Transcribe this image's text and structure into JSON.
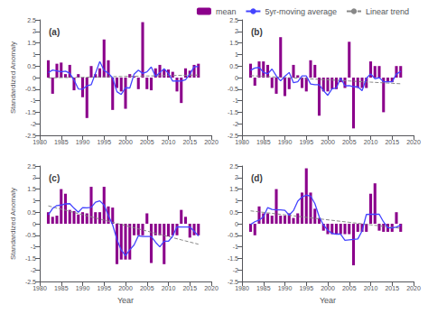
{
  "chart_data": [
    {
      "type": "bar",
      "title": "(a)",
      "x": [
        1982,
        1983,
        1984,
        1985,
        1986,
        1987,
        1988,
        1989,
        1990,
        1991,
        1992,
        1993,
        1994,
        1995,
        1996,
        1997,
        1998,
        1999,
        2000,
        2001,
        2002,
        2003,
        2004,
        2005,
        2006,
        2007,
        2008,
        2009,
        2010,
        2011,
        2012,
        2013,
        2014,
        2015,
        2016,
        2017
      ],
      "series": [
        {
          "name": "mean",
          "type": "bar",
          "color": "#8B008B",
          "values": [
            0.75,
            -0.7,
            0.6,
            0.65,
            0.15,
            0.55,
            -0.55,
            0.15,
            -0.85,
            -1.75,
            0.5,
            0.15,
            0.4,
            1.65,
            0.75,
            -1.4,
            -0.45,
            -0.6,
            -1.35,
            0.15,
            0.05,
            -0.5,
            2.4,
            -0.5,
            -0.55,
            0.4,
            0.55,
            0.35,
            0.35,
            0.25,
            -0.6,
            -1.1,
            0.4,
            0.3,
            0.55,
            0.6
          ]
        },
        {
          "name": "5yr-moving average",
          "type": "line",
          "color": "#4444FF",
          "line_style": "solid",
          "values": [
            0.2167,
            0.325,
            0.29,
            0.25,
            0.28,
            0.19,
            -0.11,
            -0.49,
            -0.5,
            -0.36,
            -0.31,
            0.19,
            0.69,
            0.31,
            0.19,
            -0.01,
            -0.61,
            -0.73,
            -0.44,
            -0.45,
            0.15,
            0.32,
            0.18,
            0.25,
            0.46,
            0.05,
            0.22,
            0.38,
            0.18,
            -0.15,
            -0.14,
            -0.15,
            -0.09,
            0.15,
            0.4625,
            0.4833
          ]
        },
        {
          "name": "Linear trend",
          "type": "line",
          "color": "#888888",
          "line_style": "dashed",
          "values": [
            -0.0128,
            -0.0093,
            -0.0057,
            -0.0022,
            0.0013,
            0.0048,
            0.0083,
            0.0118,
            0.0153,
            0.0188,
            0.0223,
            0.0258,
            0.0293,
            0.0328,
            0.0363,
            0.0398,
            0.0434,
            0.0469,
            0.0504,
            0.0539,
            0.0574,
            0.0609,
            0.0644,
            0.0679,
            0.0714,
            0.0749,
            0.0784,
            0.0819,
            0.0854,
            0.0889,
            0.0924,
            0.096,
            0.0995,
            0.103,
            0.1065,
            0.11
          ]
        }
      ],
      "ylabel": "Standardized Anomaly",
      "xlim": [
        1980,
        2020
      ],
      "xticks": [
        1980,
        1985,
        1990,
        1995,
        2000,
        2005,
        2010,
        2015,
        2020
      ],
      "ylim": [
        -2.5,
        2.5
      ],
      "yticks": [
        -2.5,
        -2,
        -1.5,
        -1,
        -0.5,
        0,
        0.5,
        1,
        1.5,
        2,
        2.5
      ],
      "grid": false
    },
    {
      "type": "bar",
      "title": "(b)",
      "x": [
        1982,
        1983,
        1984,
        1985,
        1986,
        1987,
        1988,
        1989,
        1990,
        1991,
        1992,
        1993,
        1994,
        1995,
        1996,
        1997,
        1998,
        1999,
        2000,
        2001,
        2002,
        2003,
        2004,
        2005,
        2006,
        2007,
        2008,
        2009,
        2010,
        2011,
        2012,
        2013,
        2014,
        2015,
        2016,
        2017
      ],
      "series": [
        {
          "name": "mean",
          "type": "bar",
          "color": "#8B008B",
          "values": [
            0.6,
            -0.35,
            0.7,
            0.7,
            0.55,
            -0.45,
            -0.7,
            1.75,
            -0.8,
            -0.5,
            0.55,
            0.1,
            -0.45,
            -0.6,
            0.75,
            0.55,
            -1.65,
            -0.6,
            -0.6,
            -0.5,
            -0.5,
            -0.2,
            -0.45,
            1.55,
            -2.2,
            -0.45,
            -0.45,
            -0.45,
            0.7,
            0.5,
            0.5,
            -1.5,
            -0.2,
            -0.2,
            0.5,
            0.5
          ]
        },
        {
          "name": "5yr-moving average",
          "type": "line",
          "color": "#4444FF",
          "line_style": "solid",
          "values": [
            0.3167,
            0.4125,
            0.44,
            0.23,
            0.16,
            0.37,
            0.07,
            -0.14,
            0.06,
            0.22,
            -0.22,
            -0.18,
            0.07,
            0.07,
            -0.28,
            -0.31,
            -0.31,
            -0.56,
            -0.77,
            -0.48,
            -0.45,
            -0.02,
            -0.36,
            -0.35,
            -0.4,
            -0.4,
            -0.57,
            -0.03,
            0.16,
            -0.05,
            0,
            -0.18,
            -0.18,
            -0.18,
            0.15,
            0.2667
          ]
        },
        {
          "name": "Linear trend",
          "type": "line",
          "color": "#888888",
          "line_style": "dashed",
          "values": [
            0.084,
            0.074,
            0.0639,
            0.0539,
            0.0439,
            0.0338,
            0.0238,
            0.0137,
            0.0037,
            -0.0063,
            -0.0164,
            -0.0264,
            -0.0365,
            -0.0465,
            -0.0565,
            -0.0666,
            -0.0766,
            -0.0866,
            -0.0967,
            -0.1067,
            -0.1168,
            -0.1268,
            -0.1368,
            -0.1469,
            -0.1569,
            -0.167,
            -0.177,
            -0.187,
            -0.1971,
            -0.2071,
            -0.2171,
            -0.2272,
            -0.2372,
            -0.2473,
            -0.2573,
            -0.2673
          ]
        }
      ],
      "legend": "upper right",
      "xlim": [
        1980,
        2020
      ],
      "xticks": [
        1980,
        1985,
        1990,
        1995,
        2000,
        2005,
        2010,
        2015,
        2020
      ],
      "ylim": [
        -2.5,
        2.5
      ],
      "yticks": [
        -2.5,
        -2,
        -1.5,
        -1,
        -0.5,
        0,
        0.5,
        1,
        1.5,
        2,
        2.5
      ],
      "grid": false
    },
    {
      "type": "bar",
      "title": "(c)",
      "x": [
        1982,
        1983,
        1984,
        1985,
        1986,
        1987,
        1988,
        1989,
        1990,
        1991,
        1992,
        1993,
        1994,
        1995,
        1996,
        1997,
        1998,
        1999,
        2000,
        2001,
        2002,
        2003,
        2004,
        2005,
        2006,
        2007,
        2008,
        2009,
        2010,
        2011,
        2012,
        2013,
        2014,
        2015,
        2016,
        2017
      ],
      "series": [
        {
          "name": "mean",
          "type": "bar",
          "color": "#8B008B",
          "values": [
            0.5,
            0.3,
            0.35,
            1.5,
            1.3,
            0.6,
            0.55,
            0.4,
            0.5,
            0.45,
            1.6,
            0.5,
            0.5,
            1.6,
            0.75,
            0.7,
            -1.75,
            -1.55,
            -1.55,
            -1.55,
            -0.5,
            -0.5,
            -0.5,
            0.45,
            -1.7,
            -0.5,
            -0.5,
            -1.75,
            -0.55,
            -0.5,
            -0.5,
            0.6,
            0.3,
            -0.6,
            -0.5,
            -0.5
          ]
        },
        {
          "name": "5yr-moving average",
          "type": "line",
          "color": "#4444FF",
          "line_style": "solid",
          "values": [
            0.3833,
            0.6625,
            0.79,
            0.81,
            0.86,
            0.87,
            0.67,
            0.5,
            0.7,
            0.69,
            0.71,
            0.93,
            0.99,
            0.81,
            0.36,
            -0.05,
            -0.68,
            -1.14,
            -1.38,
            -1.13,
            -0.92,
            -0.52,
            -0.55,
            -0.55,
            -0.55,
            -0.8,
            -1,
            -0.76,
            -0.76,
            -0.54,
            -0.13,
            -0.14,
            -0.14,
            -0.14,
            -0.325,
            -0.5333
          ]
        },
        {
          "name": "Linear trend",
          "type": "line",
          "color": "#888888",
          "line_style": "dashed",
          "values": [
            0.7736,
            0.7261,
            0.6787,
            0.6312,
            0.5837,
            0.5363,
            0.4888,
            0.4414,
            0.3939,
            0.3465,
            0.299,
            0.2515,
            0.2041,
            0.1566,
            0.1092,
            0.0617,
            0.0142,
            -0.0332,
            -0.0807,
            -0.1281,
            -0.1756,
            -0.223,
            -0.2705,
            -0.318,
            -0.3654,
            -0.4129,
            -0.4603,
            -0.5078,
            -0.5553,
            -0.6027,
            -0.6502,
            -0.6976,
            -0.7451,
            -0.7925,
            -0.84,
            -0.8875
          ]
        }
      ],
      "ylabel": "Standardized Anomaly",
      "xlabel": "Year",
      "xlim": [
        1980,
        2020
      ],
      "xticks": [
        1980,
        1985,
        1990,
        1995,
        2000,
        2005,
        2010,
        2015,
        2020
      ],
      "ylim": [
        -2.5,
        2.5
      ],
      "yticks": [
        -2.5,
        -2,
        -1.5,
        -1,
        -0.5,
        0,
        0.5,
        1,
        1.5,
        2,
        2.5
      ],
      "grid": false
    },
    {
      "type": "bar",
      "title": "(d)",
      "x": [
        1982,
        1983,
        1984,
        1985,
        1986,
        1987,
        1988,
        1989,
        1990,
        1991,
        1992,
        1993,
        1994,
        1995,
        1996,
        1997,
        1998,
        1999,
        2000,
        2001,
        2002,
        2003,
        2004,
        2005,
        2006,
        2007,
        2008,
        2009,
        2010,
        2011,
        2012,
        2013,
        2014,
        2015,
        2016,
        2017
      ],
      "series": [
        {
          "name": "mean",
          "type": "bar",
          "color": "#8B008B",
          "values": [
            -0.35,
            -0.5,
            0.75,
            0.45,
            0.45,
            0.35,
            1.5,
            0.35,
            0.35,
            0.45,
            0.25,
            0.45,
            1.35,
            2.4,
            1.35,
            0.65,
            0.25,
            -0.3,
            -0.45,
            -0.45,
            -0.45,
            -0.45,
            -0.45,
            -0.45,
            -1.8,
            -0.35,
            -0.35,
            -0.35,
            1.3,
            1.75,
            -0.3,
            -0.35,
            -0.35,
            -0.35,
            0.5,
            -0.35
          ]
        },
        {
          "name": "5yr-moving average",
          "type": "line",
          "color": "#4444FF",
          "line_style": "solid",
          "values": [
            -0.0333,
            0.0875,
            0.16,
            0.3,
            0.7,
            0.62,
            0.6,
            0.6,
            0.58,
            0.37,
            0.57,
            0.98,
            1.16,
            1.24,
            1.2,
            0.87,
            0.3,
            -0.06,
            -0.28,
            -0.42,
            -0.45,
            -0.45,
            -0.72,
            -0.7,
            -0.68,
            -0.66,
            -0.31,
            0.4,
            0.41,
            0.41,
            0.41,
            0.08,
            -0.17,
            -0.18,
            -0.1375,
            -0.0667
          ]
        },
        {
          "name": "Linear trend",
          "type": "line",
          "color": "#888888",
          "line_style": "dashed",
          "values": [
            0.5576,
            0.536,
            0.5145,
            0.4929,
            0.4714,
            0.4499,
            0.4283,
            0.4068,
            0.3852,
            0.3637,
            0.3421,
            0.3206,
            0.299,
            0.2775,
            0.256,
            0.2344,
            0.2129,
            0.1913,
            0.1698,
            0.1482,
            0.1267,
            0.1052,
            0.0836,
            0.0621,
            0.0405,
            0.019,
            -0.0026,
            -0.0241,
            -0.0457,
            -0.0672,
            -0.0887,
            -0.1103,
            -0.1318,
            -0.1534,
            -0.1749,
            -0.1965
          ]
        }
      ],
      "xlabel": "Year",
      "xlim": [
        1980,
        2020
      ],
      "xticks": [
        1980,
        1985,
        1990,
        1995,
        2000,
        2005,
        2010,
        2015,
        2020
      ],
      "ylim": [
        -2.5,
        2.5
      ],
      "yticks": [
        -2.5,
        -2,
        -1.5,
        -1,
        -0.5,
        0,
        0.5,
        1,
        1.5,
        2,
        2.5
      ],
      "grid": false
    }
  ]
}
